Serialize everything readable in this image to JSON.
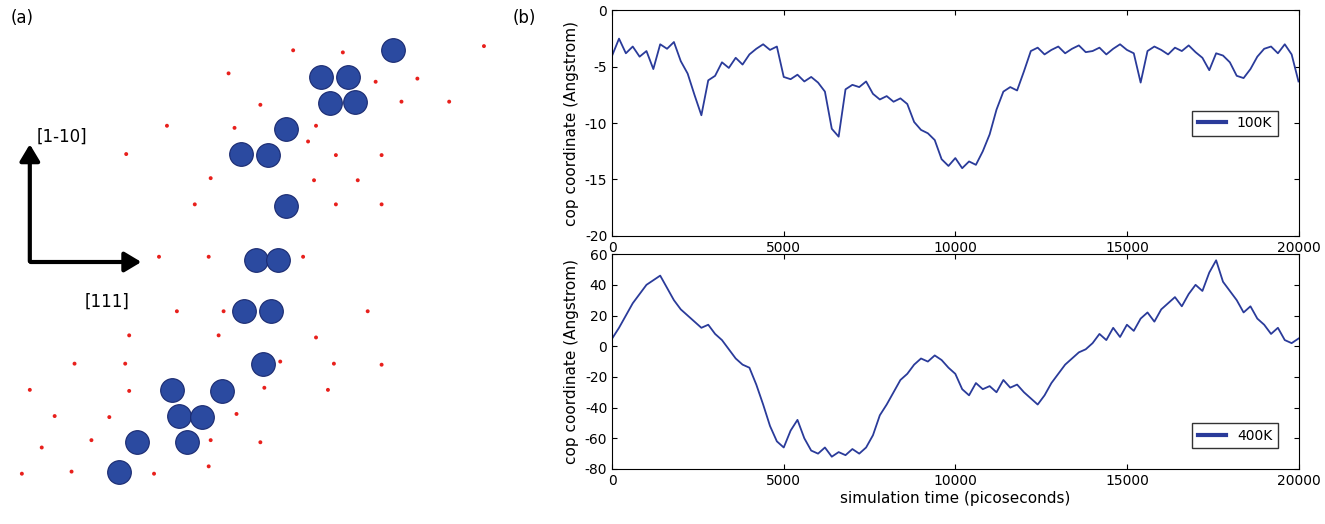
{
  "chart_data": [
    {
      "type": "scatter",
      "panel_label": "(a)",
      "annotations": [
        "[1-10]",
        "[111]"
      ],
      "xlim": [
        0,
        500
      ],
      "ylim": [
        490,
        10
      ],
      "tick_labels": false,
      "series": [
        {
          "color": "#2b4aa0",
          "marker": "o",
          "x": [
            395,
            323,
            350,
            332,
            357,
            288,
            243,
            270,
            288,
            258,
            280,
            246,
            273,
            265,
            173,
            223,
            180,
            203,
            138,
            188,
            120
          ],
          "values": [
            48,
            73,
            73,
            98,
            97,
            123,
            147,
            148,
            197,
            248,
            248,
            297,
            297,
            347,
            372,
            373,
            397,
            398,
            422,
            422,
            450
          ]
        },
        {
          "color": "#e8201c",
          "marker": "o",
          "x": [
            295,
            345,
            487,
            230,
            420,
            378,
            262,
            404,
            452,
            168,
            236,
            318,
            310,
            127,
            338,
            384,
            212,
            316,
            360,
            196,
            338,
            384,
            160,
            210,
            305,
            178,
            225,
            370,
            130,
            220,
            318,
            75,
            126,
            282,
            336,
            384,
            30,
            130,
            266,
            330,
            55,
            110,
            238,
            42,
            92,
            212,
            262,
            22,
            72,
            155,
            210
          ],
          "values": [
            48,
            50,
            44,
            70,
            75,
            78,
            100,
            97,
            97,
            120,
            122,
            120,
            135,
            147,
            148,
            148,
            170,
            172,
            172,
            195,
            195,
            195,
            245,
            245,
            245,
            297,
            297,
            297,
            320,
            320,
            322,
            347,
            347,
            345,
            347,
            348,
            372,
            373,
            370,
            372,
            397,
            398,
            395,
            427,
            420,
            420,
            422,
            452,
            450,
            452,
            445
          ]
        }
      ]
    },
    {
      "type": "line",
      "panel_label": "(b)",
      "y_label": "cop coordinate (Angstrom)",
      "xlim": [
        0,
        20000
      ],
      "xticks": [
        0,
        5000,
        10000,
        15000,
        20000
      ],
      "ylim": [
        -20,
        0
      ],
      "yticks": [
        -20,
        -15,
        -10,
        -5,
        0
      ],
      "legend": "center right",
      "x": [
        0,
        200,
        400,
        600,
        800,
        1000,
        1200,
        1400,
        1600,
        1800,
        2000,
        2200,
        2400,
        2600,
        2800,
        3000,
        3200,
        3400,
        3600,
        3800,
        4000,
        4200,
        4400,
        4600,
        4800,
        5000,
        5200,
        5400,
        5600,
        5800,
        6000,
        6200,
        6400,
        6600,
        6800,
        7000,
        7200,
        7400,
        7600,
        7800,
        8000,
        8200,
        8400,
        8600,
        8800,
        9000,
        9200,
        9400,
        9600,
        9800,
        10000,
        10200,
        10400,
        10600,
        10800,
        11000,
        11200,
        11400,
        11600,
        11800,
        12000,
        12200,
        12400,
        12600,
        12800,
        13000,
        13200,
        13400,
        13600,
        13800,
        14000,
        14200,
        14400,
        14600,
        14800,
        15000,
        15200,
        15400,
        15600,
        15800,
        16000,
        16200,
        16400,
        16600,
        16800,
        17000,
        17200,
        17400,
        17600,
        17800,
        18000,
        18200,
        18400,
        18600,
        18800,
        19000,
        19200,
        19400,
        19600,
        19800,
        20000
      ],
      "series": [
        {
          "name": "100K",
          "color": "#2a3b9a",
          "values": [
            -4.0,
            -2.5,
            -3.8,
            -3.2,
            -4.1,
            -3.6,
            -5.2,
            -3.0,
            -3.4,
            -2.8,
            -4.5,
            -5.6,
            -7.5,
            -9.3,
            -6.2,
            -5.8,
            -4.6,
            -5.1,
            -4.2,
            -4.8,
            -3.9,
            -3.4,
            -3.0,
            -3.5,
            -3.2,
            -5.9,
            -6.1,
            -5.7,
            -6.3,
            -5.9,
            -6.4,
            -7.2,
            -10.5,
            -11.2,
            -7.0,
            -6.6,
            -6.8,
            -6.3,
            -7.4,
            -7.9,
            -7.6,
            -8.1,
            -7.8,
            -8.3,
            -9.9,
            -10.6,
            -10.9,
            -11.5,
            -13.2,
            -13.8,
            -13.1,
            -14.0,
            -13.4,
            -13.7,
            -12.5,
            -11.0,
            -8.8,
            -7.2,
            -6.8,
            -7.1,
            -5.4,
            -3.6,
            -3.3,
            -3.9,
            -3.5,
            -3.2,
            -3.8,
            -3.4,
            -3.1,
            -3.7,
            -3.6,
            -3.3,
            -3.9,
            -3.4,
            -3.0,
            -3.5,
            -3.8,
            -6.4,
            -3.6,
            -3.2,
            -3.5,
            -3.9,
            -3.3,
            -3.6,
            -3.1,
            -3.7,
            -4.2,
            -5.3,
            -3.8,
            -4.0,
            -4.6,
            -5.8,
            -6.0,
            -5.2,
            -4.1,
            -3.4,
            -3.2,
            -3.8,
            -3.0,
            -3.9,
            -6.3
          ]
        }
      ]
    },
    {
      "type": "line",
      "y_label": "cop coordinate (Angstrom)",
      "x_label": "simulation time (picoseconds)",
      "xlim": [
        0,
        20000
      ],
      "xticks": [
        0,
        5000,
        10000,
        15000,
        20000
      ],
      "ylim": [
        -80,
        60
      ],
      "yticks": [
        -80,
        -60,
        -40,
        -20,
        0,
        20,
        40,
        60
      ],
      "legend": "lower right",
      "x": [
        0,
        200,
        400,
        600,
        800,
        1000,
        1200,
        1400,
        1600,
        1800,
        2000,
        2200,
        2400,
        2600,
        2800,
        3000,
        3200,
        3400,
        3600,
        3800,
        4000,
        4200,
        4400,
        4600,
        4800,
        5000,
        5200,
        5400,
        5600,
        5800,
        6000,
        6200,
        6400,
        6600,
        6800,
        7000,
        7200,
        7400,
        7600,
        7800,
        8000,
        8200,
        8400,
        8600,
        8800,
        9000,
        9200,
        9400,
        9600,
        9800,
        10000,
        10200,
        10400,
        10600,
        10800,
        11000,
        11200,
        11400,
        11600,
        11800,
        12000,
        12200,
        12400,
        12600,
        12800,
        13000,
        13200,
        13400,
        13600,
        13800,
        14000,
        14200,
        14400,
        14600,
        14800,
        15000,
        15200,
        15400,
        15600,
        15800,
        16000,
        16200,
        16400,
        16600,
        16800,
        17000,
        17200,
        17400,
        17600,
        17800,
        18000,
        18200,
        18400,
        18600,
        18800,
        19000,
        19200,
        19400,
        19600,
        19800,
        20000
      ],
      "series": [
        {
          "name": "400K",
          "color": "#2a3b9a",
          "values": [
            5,
            12,
            20,
            28,
            34,
            40,
            43,
            46,
            38,
            30,
            24,
            20,
            16,
            12,
            14,
            8,
            4,
            -2,
            -8,
            -12,
            -14,
            -25,
            -38,
            -52,
            -62,
            -66,
            -55,
            -48,
            -60,
            -68,
            -70,
            -66,
            -72,
            -69,
            -71,
            -67,
            -70,
            -66,
            -58,
            -45,
            -38,
            -30,
            -22,
            -18,
            -12,
            -8,
            -10,
            -6,
            -9,
            -14,
            -18,
            -28,
            -32,
            -24,
            -28,
            -26,
            -30,
            -22,
            -27,
            -25,
            -30,
            -34,
            -38,
            -32,
            -24,
            -18,
            -12,
            -8,
            -4,
            -2,
            2,
            8,
            4,
            12,
            6,
            14,
            10,
            18,
            22,
            16,
            24,
            28,
            32,
            26,
            34,
            40,
            36,
            48,
            56,
            42,
            36,
            30,
            22,
            26,
            18,
            14,
            8,
            12,
            4,
            2,
            5
          ]
        }
      ]
    }
  ]
}
